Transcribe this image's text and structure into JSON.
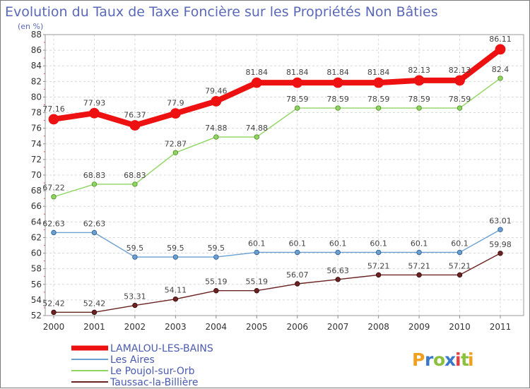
{
  "chart_data": {
    "type": "line",
    "title": "Evolution du Taux de Taxe Foncière sur les Propriétés Non Bâties",
    "ylabel": "(en %)",
    "xlabel": "",
    "x": [
      "2000",
      "2001",
      "2002",
      "2003",
      "2004",
      "2005",
      "2006",
      "2007",
      "2008",
      "2009",
      "2010",
      "2011"
    ],
    "yticks": [
      "52",
      "54",
      "56",
      "58",
      "60",
      "62",
      "64",
      "66",
      "68",
      "70",
      "72",
      "74",
      "76",
      "78",
      "80",
      "82",
      "84",
      "86",
      "88"
    ],
    "ylim": [
      52,
      88
    ],
    "grid": true,
    "legend_position": "bottom-left",
    "series": [
      {
        "name": "LAMALOU-LES-BAINS",
        "color": "#ee1111",
        "values": [
          77.16,
          77.93,
          76.37,
          77.9,
          79.46,
          81.84,
          81.84,
          81.84,
          81.84,
          82.13,
          82.13,
          86.11
        ],
        "labels": [
          "77.16",
          "77.93",
          "76.37",
          "77.9",
          "79.46",
          "81.84",
          "81.84",
          "81.84",
          "81.84",
          "82.13",
          "82.13",
          "86.11"
        ]
      },
      {
        "name": "Les Aires",
        "color": "#6a9fd0",
        "values": [
          62.63,
          62.63,
          59.5,
          59.5,
          59.5,
          60.1,
          60.1,
          60.1,
          60.1,
          60.1,
          60.1,
          63.01
        ],
        "labels": [
          "62.63",
          "62.63",
          "59.5",
          "59.5",
          "59.5",
          "60.1",
          "60.1",
          "60.1",
          "60.1",
          "60.1",
          "60.1",
          "63.01"
        ]
      },
      {
        "name": "Le Poujol-sur-Orb",
        "color": "#8fd460",
        "values": [
          67.22,
          68.83,
          68.83,
          72.87,
          74.88,
          74.88,
          78.59,
          78.59,
          78.59,
          78.59,
          78.59,
          82.4
        ],
        "labels": [
          "67.22",
          "68.83",
          "68.83",
          "72.87",
          "74.88",
          "74.88",
          "78.59",
          "78.59",
          "78.59",
          "78.59",
          "78.59",
          "82.4"
        ]
      },
      {
        "name": "Taussac-la-Billière",
        "color": "#6a2222",
        "values": [
          52.42,
          52.42,
          53.31,
          54.11,
          55.19,
          55.19,
          56.07,
          56.63,
          57.21,
          57.21,
          57.21,
          59.98
        ],
        "labels": [
          "52.42",
          "52.42",
          "53.31",
          "54.11",
          "55.19",
          "55.19",
          "56.07",
          "56.63",
          "57.21",
          "57.21",
          "57.21",
          "59.98"
        ]
      }
    ]
  },
  "logo": {
    "letters": [
      "P",
      "r",
      "o",
      "x",
      "i",
      "t",
      "i"
    ],
    "colors": [
      "#f0a020",
      "#3a78c8",
      "#8ac03c",
      "#3a78c8",
      "#e04040",
      "#8ac03c",
      "#f0a020"
    ]
  }
}
